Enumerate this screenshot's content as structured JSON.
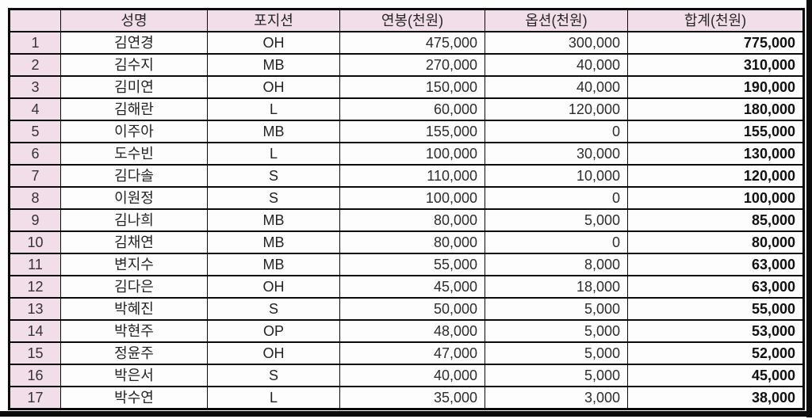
{
  "colors": {
    "header_bg": "#f2dee8",
    "border": "#0a0a0a",
    "cell_bg": "#fdfdfd",
    "total_text": "#111111"
  },
  "table": {
    "columns": [
      "",
      "성명",
      "포지션",
      "연봉(천원)",
      "옵션(천원)",
      "합계(천원)"
    ],
    "rows": [
      {
        "no": "1",
        "name": "김연경",
        "position": "OH",
        "salary": "475,000",
        "option": "300,000",
        "total": "775,000"
      },
      {
        "no": "2",
        "name": "김수지",
        "position": "MB",
        "salary": "270,000",
        "option": "40,000",
        "total": "310,000"
      },
      {
        "no": "3",
        "name": "김미연",
        "position": "OH",
        "salary": "150,000",
        "option": "40,000",
        "total": "190,000"
      },
      {
        "no": "4",
        "name": "김해란",
        "position": "L",
        "salary": "60,000",
        "option": "120,000",
        "total": "180,000"
      },
      {
        "no": "5",
        "name": "이주아",
        "position": "MB",
        "salary": "155,000",
        "option": "0",
        "total": "155,000"
      },
      {
        "no": "6",
        "name": "도수빈",
        "position": "L",
        "salary": "100,000",
        "option": "30,000",
        "total": "130,000"
      },
      {
        "no": "7",
        "name": "김다솔",
        "position": "S",
        "salary": "110,000",
        "option": "10,000",
        "total": "120,000"
      },
      {
        "no": "8",
        "name": "이원정",
        "position": "S",
        "salary": "100,000",
        "option": "0",
        "total": "100,000"
      },
      {
        "no": "9",
        "name": "김나희",
        "position": "MB",
        "salary": "80,000",
        "option": "5,000",
        "total": "85,000"
      },
      {
        "no": "10",
        "name": "김채연",
        "position": "MB",
        "salary": "80,000",
        "option": "0",
        "total": "80,000"
      },
      {
        "no": "11",
        "name": "변지수",
        "position": "MB",
        "salary": "55,000",
        "option": "8,000",
        "total": "63,000"
      },
      {
        "no": "12",
        "name": "김다은",
        "position": "OH",
        "salary": "45,000",
        "option": "18,000",
        "total": "63,000"
      },
      {
        "no": "13",
        "name": "박혜진",
        "position": "S",
        "salary": "50,000",
        "option": "5,000",
        "total": "55,000"
      },
      {
        "no": "14",
        "name": "박현주",
        "position": "OP",
        "salary": "48,000",
        "option": "5,000",
        "total": "53,000"
      },
      {
        "no": "15",
        "name": "정윤주",
        "position": "OH",
        "salary": "47,000",
        "option": "5,000",
        "total": "52,000"
      },
      {
        "no": "16",
        "name": "박은서",
        "position": "S",
        "salary": "40,000",
        "option": "5,000",
        "total": "45,000"
      },
      {
        "no": "17",
        "name": "박수연",
        "position": "L",
        "salary": "35,000",
        "option": "3,000",
        "total": "38,000"
      }
    ]
  },
  "chart_data": {
    "type": "table",
    "title": "",
    "columns": [
      "",
      "성명",
      "포지션",
      "연봉(천원)",
      "옵션(천원)",
      "합계(천원)"
    ],
    "rows": [
      [
        1,
        "김연경",
        "OH",
        475000,
        300000,
        775000
      ],
      [
        2,
        "김수지",
        "MB",
        270000,
        40000,
        310000
      ],
      [
        3,
        "김미연",
        "OH",
        150000,
        40000,
        190000
      ],
      [
        4,
        "김해란",
        "L",
        60000,
        120000,
        180000
      ],
      [
        5,
        "이주아",
        "MB",
        155000,
        0,
        155000
      ],
      [
        6,
        "도수빈",
        "L",
        100000,
        30000,
        130000
      ],
      [
        7,
        "김다솔",
        "S",
        110000,
        10000,
        120000
      ],
      [
        8,
        "이원정",
        "S",
        100000,
        0,
        100000
      ],
      [
        9,
        "김나희",
        "MB",
        80000,
        5000,
        85000
      ],
      [
        10,
        "김채연",
        "MB",
        80000,
        0,
        80000
      ],
      [
        11,
        "변지수",
        "MB",
        55000,
        8000,
        63000
      ],
      [
        12,
        "김다은",
        "OH",
        45000,
        18000,
        63000
      ],
      [
        13,
        "박혜진",
        "S",
        50000,
        5000,
        55000
      ],
      [
        14,
        "박현주",
        "OP",
        48000,
        5000,
        53000
      ],
      [
        15,
        "정윤주",
        "OH",
        47000,
        5000,
        52000
      ],
      [
        16,
        "박은서",
        "S",
        40000,
        5000,
        45000
      ],
      [
        17,
        "박수연",
        "L",
        35000,
        3000,
        38000
      ]
    ]
  }
}
